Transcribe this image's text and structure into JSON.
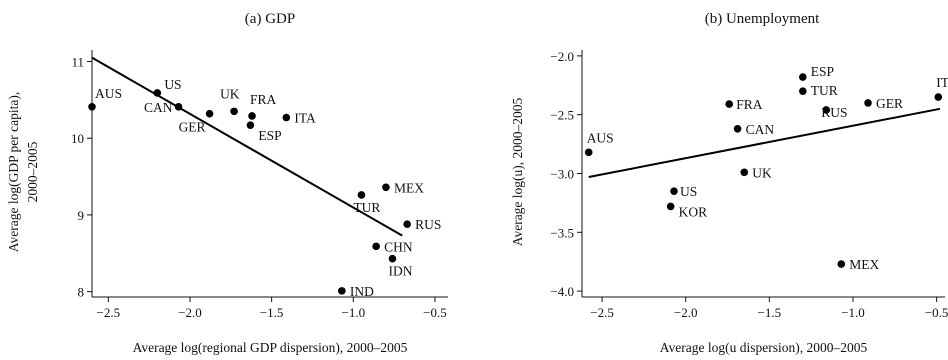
{
  "chart_data": [
    {
      "type": "scatter",
      "title": "(a) GDP",
      "xlabel": "Average log(regional GDP dispersion), 2000–2005",
      "ylabel": [
        "Average log(GDP per capita),",
        "2000–2005"
      ],
      "xlim": [
        -2.6,
        -0.42
      ],
      "ylim": [
        7.93,
        11.15
      ],
      "xticks": [
        "-2.5",
        "-2.0",
        "-1.5",
        "-1.0",
        "-0.5"
      ],
      "yticks": [
        "8",
        "9",
        "10",
        "11"
      ],
      "fit_line": {
        "x": [
          -2.6,
          -0.7
        ],
        "y": [
          11.05,
          8.73
        ]
      },
      "points": [
        {
          "label": "AUS",
          "x": -2.6,
          "y": 10.41
        },
        {
          "label": "US",
          "x": -2.2,
          "y": 10.59
        },
        {
          "label": "CAN",
          "x": -2.07,
          "y": 10.41
        },
        {
          "label": "GER",
          "x": -1.88,
          "y": 10.32
        },
        {
          "label": "UK",
          "x": -1.73,
          "y": 10.35
        },
        {
          "label": "FRA",
          "x": -1.62,
          "y": 10.29
        },
        {
          "label": "ESP",
          "x": -1.63,
          "y": 10.17
        },
        {
          "label": "ITA",
          "x": -1.41,
          "y": 10.27
        },
        {
          "label": "MEX",
          "x": -0.8,
          "y": 9.36
        },
        {
          "label": "TUR",
          "x": -0.95,
          "y": 9.26
        },
        {
          "label": "RUS",
          "x": -0.67,
          "y": 8.88
        },
        {
          "label": "CHN",
          "x": -0.86,
          "y": 8.59
        },
        {
          "label": "IDN",
          "x": -0.76,
          "y": 8.43
        },
        {
          "label": "IND",
          "x": -1.07,
          "y": 8.01
        }
      ]
    },
    {
      "type": "scatter",
      "title": "(b) Unemployment",
      "xlabel": "Average log(u dispersion), 2000–2005",
      "ylabel": [
        "Average log(u), 2000–2005"
      ],
      "xlim": [
        -2.62,
        -0.45
      ],
      "ylim": [
        -4.05,
        -1.95
      ],
      "xticks": [
        "-2.5",
        "-2.0",
        "-1.5",
        "-1.0",
        "-0.5"
      ],
      "yticks": [
        "-2.0",
        "-2.5",
        "-3.0",
        "-3.5",
        "-4.0"
      ],
      "fit_line": {
        "x": [
          -2.58,
          -0.48
        ],
        "y": [
          -3.03,
          -2.45
        ]
      },
      "points": [
        {
          "label": "AUS",
          "x": -2.58,
          "y": -2.82
        },
        {
          "label": "US",
          "x": -2.07,
          "y": -3.15
        },
        {
          "label": "KOR",
          "x": -2.09,
          "y": -3.28
        },
        {
          "label": "FRA",
          "x": -1.74,
          "y": -2.41
        },
        {
          "label": "CAN",
          "x": -1.69,
          "y": -2.62
        },
        {
          "label": "UK",
          "x": -1.65,
          "y": -2.99
        },
        {
          "label": "ESP",
          "x": -1.3,
          "y": -2.18
        },
        {
          "label": "TUR",
          "x": -1.3,
          "y": -2.3
        },
        {
          "label": "RUS",
          "x": -1.16,
          "y": -2.46
        },
        {
          "label": "GER",
          "x": -0.91,
          "y": -2.4
        },
        {
          "label": "ITA",
          "x": -0.49,
          "y": -2.35
        },
        {
          "label": "MEX",
          "x": -1.07,
          "y": -3.77
        }
      ]
    }
  ]
}
